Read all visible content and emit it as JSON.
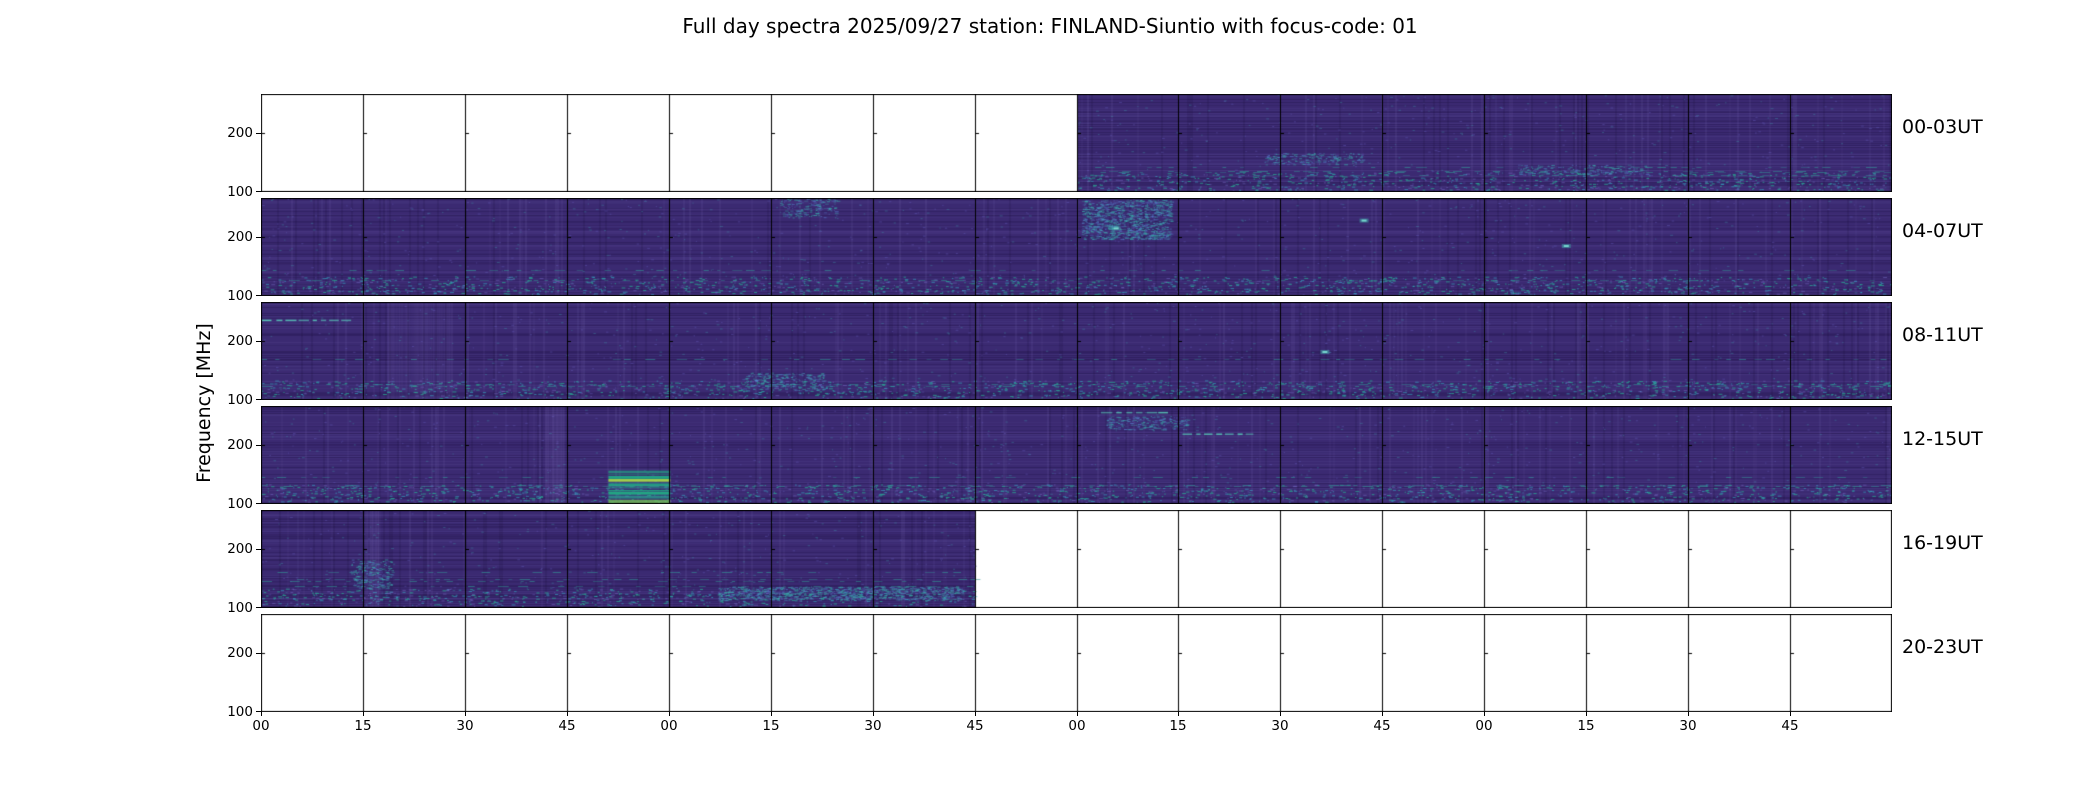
{
  "title": "Full day spectra 2025/09/27 station: FINLAND-Siuntio with focus-code: 01",
  "ylabel": "Frequency [MHz]",
  "chart_data": {
    "type": "heatmap",
    "title": "Full day spectra 2025/09/27 station: FINLAND-Siuntio with focus-code: 01",
    "ylabel": "Frequency [MHz]",
    "xlabel": "",
    "segments_per_row": 16,
    "x_tick_labels": [
      "00",
      "15",
      "30",
      "45",
      "00",
      "15",
      "30",
      "45",
      "00",
      "15",
      "30",
      "45",
      "00",
      "15",
      "30",
      "45"
    ],
    "y_ticks": [
      "200",
      "100"
    ],
    "colors": {
      "background": "#ffffff",
      "spectro_base": "#3b2a72",
      "spectro_dark": "#2c1c5c",
      "spectro_light": "#4a3a86",
      "speckle_teal": "#2a9d8f",
      "speckle_cyan": "#35b0c9",
      "bright_green": "#4fc46f",
      "bright_yellow_green": "#a8d94a",
      "grid": "#000000"
    },
    "rows": [
      {
        "label": "00-03UT",
        "coverage": [
          [
            0.5,
            1.0
          ]
        ],
        "features": [
          {
            "type": "smudge",
            "x": 0.615,
            "y": 0.6,
            "w": 0.06,
            "h": 0.12,
            "strength": 0.5
          },
          {
            "type": "smudge",
            "x": 0.77,
            "y": 0.72,
            "w": 0.08,
            "h": 0.1,
            "strength": 0.4
          }
        ]
      },
      {
        "label": "04-07UT",
        "coverage": [
          [
            0.0,
            1.0
          ]
        ],
        "features": [
          {
            "type": "smudge",
            "x": 0.503,
            "y": 0.02,
            "w": 0.055,
            "h": 0.4,
            "strength": 0.9
          },
          {
            "type": "dot",
            "x": 0.524,
            "y": 0.3
          },
          {
            "type": "smudge",
            "x": 0.318,
            "y": 0.0,
            "w": 0.035,
            "h": 0.2,
            "strength": 0.45
          },
          {
            "type": "dot",
            "x": 0.676,
            "y": 0.22
          },
          {
            "type": "dot",
            "x": 0.8,
            "y": 0.48
          }
        ]
      },
      {
        "label": "08-11UT",
        "coverage": [
          [
            0.0,
            1.0
          ]
        ],
        "features": [
          {
            "type": "column",
            "x": 0.078,
            "w": 0.04,
            "strength": 0.45
          },
          {
            "type": "hline",
            "x0": 0.0,
            "x1": 0.055,
            "y": 0.18
          },
          {
            "type": "dot",
            "x": 0.652,
            "y": 0.5
          },
          {
            "type": "smudge",
            "x": 0.295,
            "y": 0.72,
            "w": 0.05,
            "h": 0.18,
            "strength": 0.5
          }
        ]
      },
      {
        "label": "12-15UT",
        "coverage": [
          [
            0.0,
            1.0
          ]
        ],
        "features": [
          {
            "type": "column",
            "x": 0.174,
            "w": 0.012,
            "strength": 0.8
          },
          {
            "type": "bright_patch",
            "x": 0.213,
            "w": 0.038,
            "y": 0.66,
            "h": 0.32
          },
          {
            "type": "hline",
            "x0": 0.515,
            "x1": 0.558,
            "y": 0.06
          },
          {
            "type": "smudge",
            "x": 0.518,
            "y": 0.1,
            "w": 0.05,
            "h": 0.14,
            "strength": 0.6
          },
          {
            "type": "hline",
            "x0": 0.565,
            "x1": 0.608,
            "y": 0.28
          }
        ]
      },
      {
        "label": "16-19UT",
        "coverage": [
          [
            0.0,
            0.4375
          ]
        ],
        "features": [
          {
            "type": "column",
            "x": 0.064,
            "w": 0.01,
            "strength": 0.6
          },
          {
            "type": "smudge",
            "x": 0.28,
            "y": 0.78,
            "w": 0.15,
            "h": 0.14,
            "strength": 0.85
          },
          {
            "type": "smudge",
            "x": 0.055,
            "y": 0.5,
            "w": 0.025,
            "h": 0.3,
            "strength": 0.5
          }
        ]
      },
      {
        "label": "20-23UT",
        "coverage": [],
        "features": []
      }
    ]
  }
}
